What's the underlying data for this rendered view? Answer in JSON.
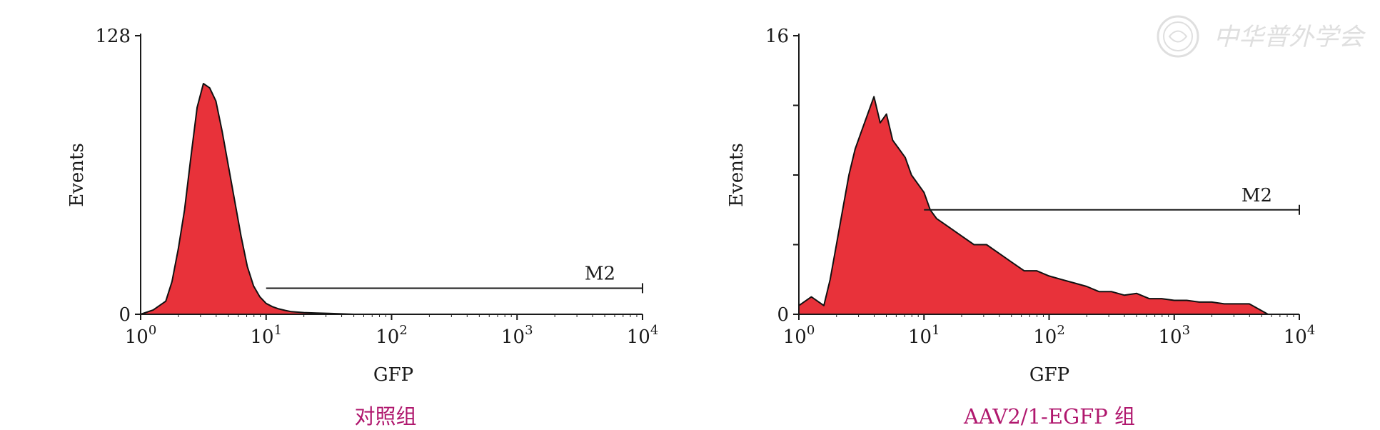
{
  "watermark": {
    "text": "中华普外学会",
    "color": "#dcdcdc"
  },
  "colors": {
    "fill": "#e8323a",
    "outline": "#111111",
    "axis": "#1a1a1a",
    "caption": "#b0186e"
  },
  "chart_data": [
    {
      "type": "histogram",
      "caption": "对照组",
      "xlabel": "GFP",
      "ylabel": "Events",
      "x_scale": "log",
      "xlim": [
        1,
        10000
      ],
      "ylim": [
        0,
        128
      ],
      "x_ticks": [
        {
          "base": "10",
          "exp": "0"
        },
        {
          "base": "10",
          "exp": "1"
        },
        {
          "base": "10",
          "exp": "2"
        },
        {
          "base": "10",
          "exp": "3"
        },
        {
          "base": "10",
          "exp": "4"
        }
      ],
      "y_ticks": [
        "0",
        "128"
      ],
      "gate": {
        "label": "M2",
        "x_start": 10,
        "x_end": 10000,
        "y": 12
      },
      "series": [
        {
          "log10_x": [
            0.0,
            0.1,
            0.2,
            0.25,
            0.3,
            0.35,
            0.4,
            0.45,
            0.5,
            0.55,
            0.6,
            0.65,
            0.7,
            0.75,
            0.8,
            0.85,
            0.9,
            0.95,
            1.0,
            1.05,
            1.1,
            1.15,
            1.2,
            1.3,
            1.4,
            1.5,
            1.6,
            1.7
          ],
          "counts": [
            0,
            2,
            6,
            15,
            30,
            48,
            72,
            95,
            106,
            104,
            98,
            84,
            68,
            52,
            36,
            22,
            13,
            8,
            5,
            3.5,
            2.5,
            1.8,
            1.2,
            0.8,
            0.6,
            0.4,
            0.2,
            0
          ]
        }
      ]
    },
    {
      "type": "histogram",
      "caption": "AAV2/1-EGFP 组",
      "xlabel": "GFP",
      "ylabel": "Events",
      "x_scale": "log",
      "xlim": [
        1,
        10000
      ],
      "ylim": [
        0,
        16
      ],
      "x_ticks": [
        {
          "base": "10",
          "exp": "0"
        },
        {
          "base": "10",
          "exp": "1"
        },
        {
          "base": "10",
          "exp": "2"
        },
        {
          "base": "10",
          "exp": "3"
        },
        {
          "base": "10",
          "exp": "4"
        }
      ],
      "y_ticks": [
        "0",
        "16"
      ],
      "gate": {
        "label": "M2",
        "x_start": 10,
        "x_end": 10000,
        "y": 6
      },
      "series": [
        {
          "log10_x": [
            0.0,
            0.1,
            0.2,
            0.25,
            0.3,
            0.35,
            0.4,
            0.45,
            0.5,
            0.55,
            0.6,
            0.65,
            0.7,
            0.75,
            0.8,
            0.85,
            0.9,
            0.95,
            1.0,
            1.05,
            1.1,
            1.2,
            1.3,
            1.4,
            1.5,
            1.6,
            1.7,
            1.8,
            1.9,
            2.0,
            2.1,
            2.2,
            2.3,
            2.4,
            2.5,
            2.6,
            2.7,
            2.8,
            2.9,
            3.0,
            3.1,
            3.2,
            3.3,
            3.4,
            3.5,
            3.6,
            3.75
          ],
          "counts": [
            0.5,
            1,
            0.5,
            2,
            4,
            6,
            8,
            9.5,
            10.5,
            11.5,
            12.5,
            11,
            11.5,
            10,
            9.5,
            9,
            8,
            7.5,
            7,
            6,
            5.5,
            5,
            4.5,
            4,
            4,
            3.5,
            3,
            2.5,
            2.5,
            2.2,
            2,
            1.8,
            1.6,
            1.3,
            1.3,
            1.1,
            1.2,
            0.9,
            0.9,
            0.8,
            0.8,
            0.7,
            0.7,
            0.6,
            0.6,
            0.6,
            0
          ]
        }
      ]
    }
  ]
}
